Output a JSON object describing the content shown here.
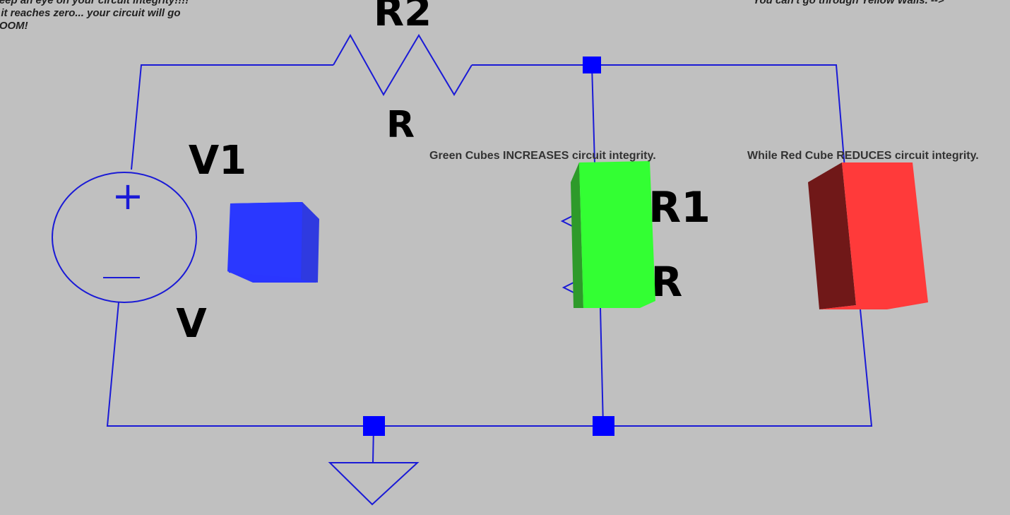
{
  "hints": {
    "top_left_lines": [
      "Keep an eye on your circuit integrity!!!!",
      "If it reaches zero... your circuit will go",
      "BOOM!"
    ],
    "top_right": "You can't go through Yellow Walls. -->",
    "green_hint": "Green Cubes INCREASES circuit integrity.",
    "red_hint": "While Red Cube REDUCES circuit integrity."
  },
  "components": {
    "r2_name": "R2",
    "r2_value": "R",
    "v1_name": "V1",
    "v1_value": "V",
    "r1_name": "R1",
    "r1_value": "R",
    "plus_sign": "+",
    "minus_sign": "−"
  },
  "cubes": {
    "player": {
      "color": "#2a36ff",
      "icon": "blue-cube"
    },
    "pickup": {
      "color": "#33ff33",
      "icon": "green-cube"
    },
    "hazard": {
      "color": "#ff3a3a",
      "icon": "red-cube"
    }
  },
  "colors": {
    "wire": "#1a1ad6",
    "node": "#0000ff",
    "background": "#c0c0c0"
  }
}
